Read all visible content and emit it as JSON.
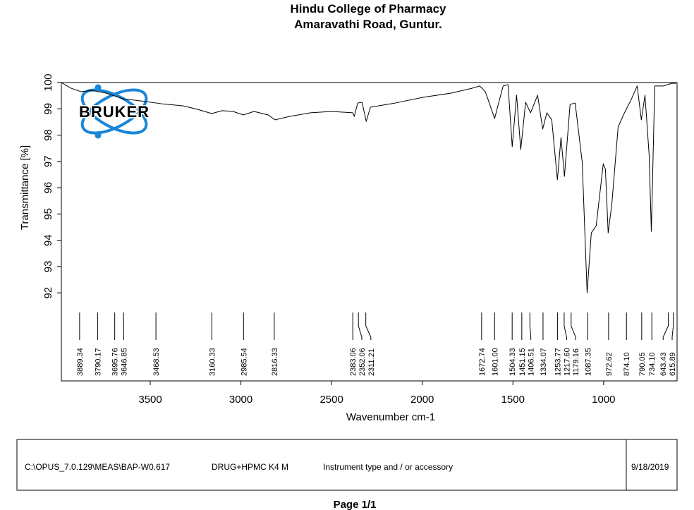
{
  "chart_data": {
    "type": "line",
    "title": "Hindu College of Pharmacy",
    "subtitle": "Amaravathi Road, Guntur.",
    "logo": "BRUKER",
    "x_label": "Wavenumber cm-1",
    "y_label": "Transmittance [%]",
    "xlim": [
      3990,
      595
    ],
    "ylim": [
      88.65,
      100
    ],
    "xticks": [
      3500,
      3000,
      2500,
      2000,
      1500,
      1000
    ],
    "yticks": [
      92,
      93,
      94,
      95,
      96,
      97,
      98,
      99,
      100
    ],
    "color": "#000000",
    "x": [
      3990,
      3939,
      3881,
      3823,
      3745,
      3648,
      3550,
      3434,
      3317,
      3239,
      3161,
      3103,
      3044,
      2986,
      2928,
      2850,
      2811,
      2733,
      2616,
      2500,
      2383,
      2375,
      2356,
      2332,
      2309,
      2286,
      2150,
      1994,
      1838,
      1722,
      1683,
      1652,
      1625,
      1601,
      1578,
      1554,
      1527,
      1504,
      1480,
      1457,
      1430,
      1403,
      1364,
      1336,
      1313,
      1286,
      1255,
      1235,
      1216,
      1185,
      1157,
      1118,
      1091,
      1068,
      1041,
      1002,
      990,
      975,
      955,
      920,
      885,
      846,
      815,
      792,
      772,
      749,
      737,
      718,
      671,
      624,
      601
    ],
    "values": [
      100,
      99.79,
      99.65,
      99.7,
      99.6,
      99.38,
      99.3,
      99.19,
      99.11,
      98.98,
      98.82,
      98.93,
      98.9,
      98.77,
      98.9,
      98.77,
      98.58,
      98.71,
      98.85,
      98.9,
      98.85,
      98.71,
      99.22,
      99.25,
      98.52,
      99.06,
      99.22,
      99.44,
      99.6,
      99.79,
      99.87,
      99.65,
      99.11,
      98.63,
      99.25,
      99.87,
      99.92,
      97.56,
      99.52,
      97.45,
      99.25,
      98.85,
      99.52,
      98.23,
      98.85,
      98.58,
      96.3,
      97.91,
      96.43,
      99.17,
      99.22,
      96.97,
      92.0,
      94.28,
      94.55,
      96.91,
      96.7,
      94.28,
      95.36,
      98.31,
      98.85,
      99.38,
      99.87,
      98.58,
      99.52,
      97.24,
      94.34,
      99.87,
      99.87,
      99.97,
      99.97
    ],
    "peaks": [
      3889.34,
      3790.17,
      3695.76,
      3646.85,
      3468.53,
      3160.33,
      2985.54,
      2816.33,
      2383.06,
      2352.06,
      2311.21,
      1672.74,
      {
        "value": 1601,
        "label": "1601.00"
      },
      1504.33,
      1451.15,
      1406.51,
      1334.07,
      1253.77,
      {
        "value": 1217.6,
        "label": "1217.60"
      },
      1179.16,
      1087.35,
      972.62,
      {
        "value": 874.1,
        "label": "874.10"
      },
      790.05,
      {
        "value": 734.1,
        "label": "734.10"
      },
      643.43,
      615.89
    ]
  },
  "footer": {
    "file": "C:\\OPUS_7.0.129\\MEAS\\BAP-W0.617",
    "sample": "DRUG+HPMC K4 M",
    "instrument": "Instrument type and / or accessory",
    "date": "9/18/2019",
    "page": "Page 1/1"
  }
}
